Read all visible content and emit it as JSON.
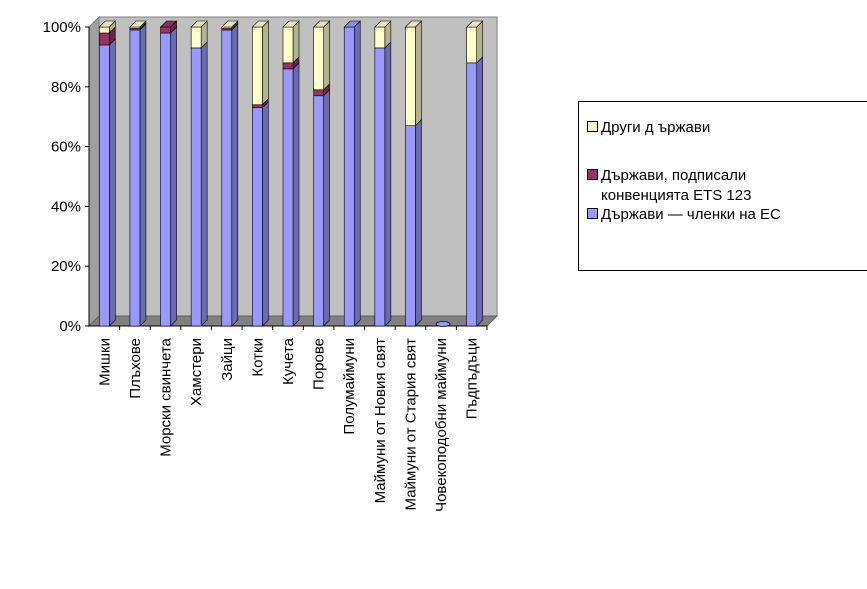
{
  "chart_data": {
    "type": "bar",
    "stacked": true,
    "percent": true,
    "categories": [
      "Мишки",
      "Плъхове",
      "Морски свинчета",
      "Хамстери",
      "Зайци",
      "Котки",
      "Кучета",
      "Порове",
      "Полумаймуни",
      "Маймуни от Новия свят",
      "Маймуни от Стария свят",
      "Човекоподобни маймуни",
      "Пъдпъдъци"
    ],
    "series": [
      {
        "name": "Държави — членки на ЕС",
        "color": "#9999ff",
        "values": [
          94,
          99,
          98,
          93,
          99,
          73,
          86,
          77,
          100,
          93,
          67,
          0,
          88
        ]
      },
      {
        "name": "Държави, подписали конвенцията ETS 123",
        "color": "#993366",
        "values": [
          4,
          0.5,
          2,
          0,
          0.5,
          1,
          2,
          2,
          0,
          0,
          0,
          0,
          0
        ]
      },
      {
        "name": "Други д ържави",
        "color": "#ffffcc",
        "values": [
          2,
          0.5,
          0,
          7,
          0.5,
          26,
          12,
          21,
          0,
          7,
          33,
          0,
          12
        ]
      }
    ],
    "legend_order": [
      2,
      1,
      0
    ],
    "legend_lines": [
      [
        "Други д ържави"
      ],
      [
        "Държави, подписали",
        "конвенцията ETS 123"
      ],
      [
        "Държави — членки на ЕС"
      ]
    ],
    "yticks": [
      "0%",
      "20%",
      "40%",
      "60%",
      "80%",
      "100%"
    ],
    "ylim": [
      0,
      100
    ],
    "grid": false,
    "legend_position": "right"
  }
}
